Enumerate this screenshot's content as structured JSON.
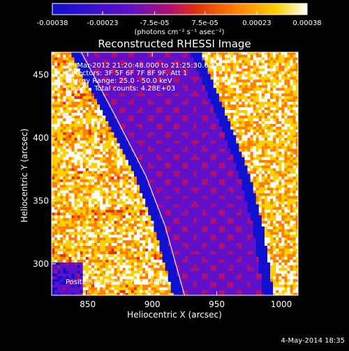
{
  "colorbar": {
    "tick_labels": [
      "-0.00038",
      "-0.00023",
      "-7.5e-05",
      "7.5e-05",
      "0.00023",
      "0.00038"
    ],
    "tick_values": [
      -0.00038,
      -0.00023,
      -7.5e-05,
      7.5e-05,
      0.00023,
      0.00038
    ],
    "unit_label": "(photons cm⁻² s⁻¹ asec⁻²)",
    "range": [
      -0.00038,
      0.00038
    ],
    "colors": [
      "#1010d0",
      "#6010c8",
      "#b01070",
      "#e03010",
      "#ff8000",
      "#ffd000",
      "#ffffff"
    ]
  },
  "chart_data": {
    "type": "heatmap",
    "title": "Reconstructed RHESSI Image",
    "xlabel": "Heliocentric X (arcsec)",
    "ylabel": "Heliocentric Y (arcsec)",
    "xlim": [
      822,
      1013
    ],
    "ylim": [
      275,
      468
    ],
    "xticks": [
      850,
      900,
      950,
      1000
    ],
    "yticks": [
      300,
      350,
      400,
      450
    ],
    "limb_curve": [
      [
        845,
        468
      ],
      [
        870,
        420
      ],
      [
        895,
        370
      ],
      [
        910,
        330
      ],
      [
        925,
        275
      ]
    ],
    "features": [
      {
        "name": "left-bright-band",
        "x": [
          822,
          880
        ],
        "y": [
          275,
          440
        ]
      },
      {
        "name": "right-bright-band",
        "x": [
          945,
          1010
        ],
        "y": [
          275,
          468
        ]
      }
    ]
  },
  "annotations": {
    "time_range": "13-Mar-2012 21:20:48.000 to 21:25:30.000",
    "detectors": "Detectors: 3F 5F 6F 7F 8F 9F, Att 1",
    "energy": "Energy Range: 25.0 - 50.0 keV",
    "clean": "Clean    Total counts: 4.28E+03",
    "peak": "Position of Peak = [911,434]"
  },
  "footer": {
    "date": "4-May-2014 18:35"
  }
}
